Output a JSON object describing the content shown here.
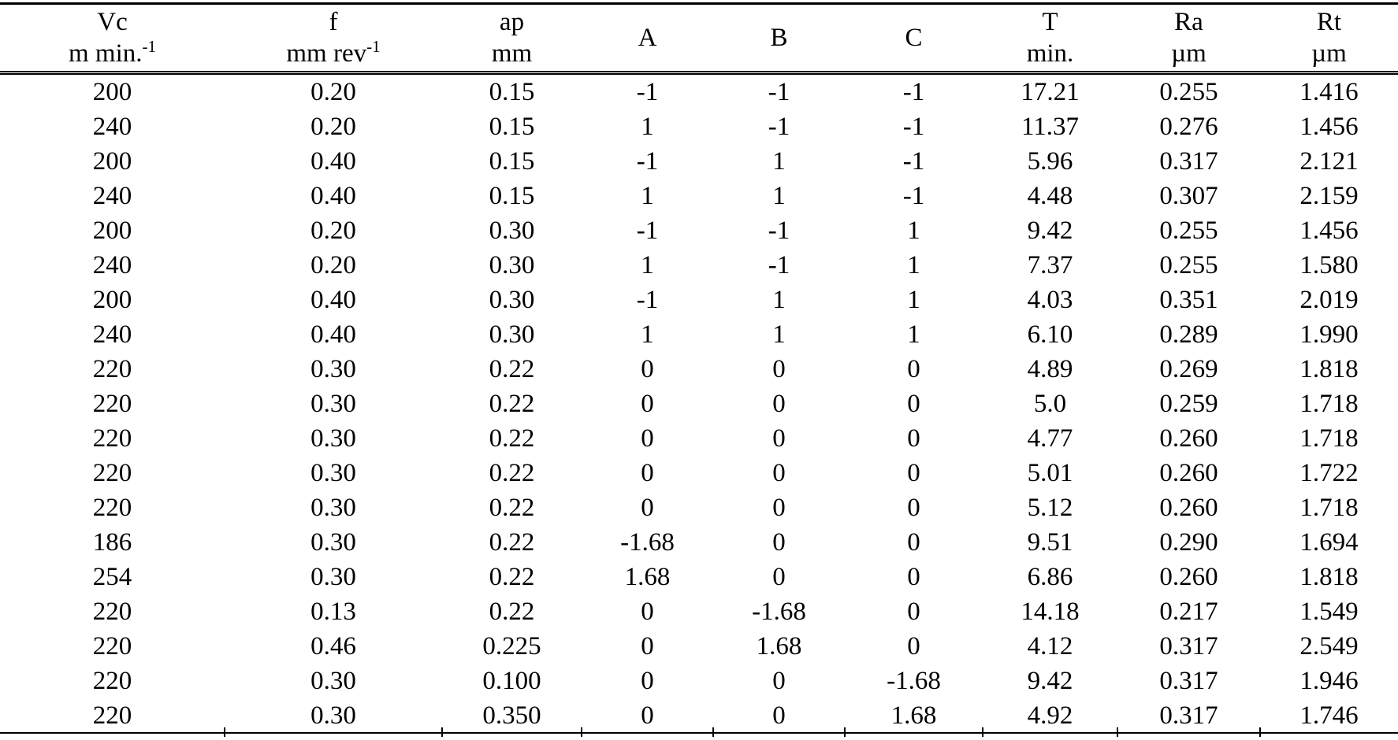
{
  "table": {
    "columns": [
      {
        "symbol": "Vc",
        "unit": "m min.",
        "unit_sup": "-1"
      },
      {
        "symbol": "f",
        "unit": "mm rev",
        "unit_sup": "-1"
      },
      {
        "symbol": "ap",
        "unit": "mm",
        "unit_sup": ""
      },
      {
        "symbol": "A",
        "unit": "",
        "unit_sup": ""
      },
      {
        "symbol": "B",
        "unit": "",
        "unit_sup": ""
      },
      {
        "symbol": "C",
        "unit": "",
        "unit_sup": ""
      },
      {
        "symbol": "T",
        "unit": "min.",
        "unit_sup": ""
      },
      {
        "symbol": "Ra",
        "unit": "µm",
        "unit_sup": ""
      },
      {
        "symbol": "Rt",
        "unit": "µm",
        "unit_sup": ""
      }
    ],
    "rows": [
      [
        "200",
        "0.20",
        "0.15",
        "-1",
        "-1",
        "-1",
        "17.21",
        "0.255",
        "1.416"
      ],
      [
        "240",
        "0.20",
        "0.15",
        "1",
        "-1",
        "-1",
        "11.37",
        "0.276",
        "1.456"
      ],
      [
        "200",
        "0.40",
        "0.15",
        "-1",
        "1",
        "-1",
        "5.96",
        "0.317",
        "2.121"
      ],
      [
        "240",
        "0.40",
        "0.15",
        "1",
        "1",
        "-1",
        "4.48",
        "0.307",
        "2.159"
      ],
      [
        "200",
        "0.20",
        "0.30",
        "-1",
        "-1",
        "1",
        "9.42",
        "0.255",
        "1.456"
      ],
      [
        "240",
        "0.20",
        "0.30",
        "1",
        "-1",
        "1",
        "7.37",
        "0.255",
        "1.580"
      ],
      [
        "200",
        "0.40",
        "0.30",
        "-1",
        "1",
        "1",
        "4.03",
        "0.351",
        "2.019"
      ],
      [
        "240",
        "0.40",
        "0.30",
        "1",
        "1",
        "1",
        "6.10",
        "0.289",
        "1.990"
      ],
      [
        "220",
        "0.30",
        "0.22",
        "0",
        "0",
        "0",
        "4.89",
        "0.269",
        "1.818"
      ],
      [
        "220",
        "0.30",
        "0.22",
        "0",
        "0",
        "0",
        "5.0",
        "0.259",
        "1.718"
      ],
      [
        "220",
        "0.30",
        "0.22",
        "0",
        "0",
        "0",
        "4.77",
        "0.260",
        "1.718"
      ],
      [
        "220",
        "0.30",
        "0.22",
        "0",
        "0",
        "0",
        "5.01",
        "0.260",
        "1.722"
      ],
      [
        "220",
        "0.30",
        "0.22",
        "0",
        "0",
        "0",
        "5.12",
        "0.260",
        "1.718"
      ],
      [
        "186",
        "0.30",
        "0.22",
        "-1.68",
        "0",
        "0",
        "9.51",
        "0.290",
        "1.694"
      ],
      [
        "254",
        "0.30",
        "0.22",
        "1.68",
        "0",
        "0",
        "6.86",
        "0.260",
        "1.818"
      ],
      [
        "220",
        "0.13",
        "0.22",
        "0",
        "-1.68",
        "0",
        "14.18",
        "0.217",
        "1.549"
      ],
      [
        "220",
        "0.46",
        "0.225",
        "0",
        "1.68",
        "0",
        "4.12",
        "0.317",
        "2.549"
      ],
      [
        "220",
        "0.30",
        "0.100",
        "0",
        "0",
        "-1.68",
        "9.42",
        "0.317",
        "1.946"
      ],
      [
        "220",
        "0.30",
        "0.350",
        "0",
        "0",
        "1.68",
        "4.92",
        "0.317",
        "1.746"
      ]
    ]
  }
}
